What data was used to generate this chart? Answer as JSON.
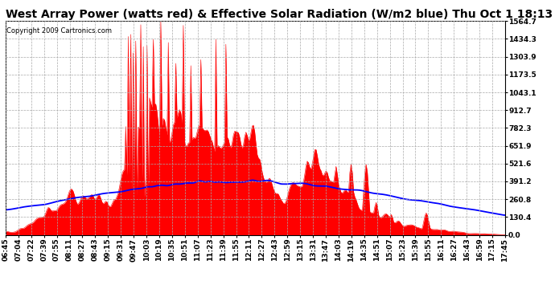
{
  "title": "West Array Power (watts red) & Effective Solar Radiation (W/m2 blue) Thu Oct 1 18:13",
  "copyright": "Copyright 2009 Cartronics.com",
  "background_color": "#ffffff",
  "plot_bg_color": "#ffffff",
  "grid_color": "#aaaaaa",
  "yticks": [
    0.0,
    130.4,
    260.8,
    391.2,
    521.6,
    651.9,
    782.3,
    912.7,
    1043.1,
    1173.5,
    1303.9,
    1434.3,
    1564.7
  ],
  "ylim": [
    0,
    1564.7
  ],
  "x_labels": [
    "06:45",
    "07:04",
    "07:22",
    "07:39",
    "07:55",
    "08:11",
    "08:27",
    "08:43",
    "09:15",
    "09:31",
    "09:47",
    "10:03",
    "10:19",
    "10:35",
    "10:51",
    "11:07",
    "11:23",
    "11:39",
    "11:55",
    "12:11",
    "12:27",
    "12:43",
    "12:59",
    "13:15",
    "13:31",
    "13:47",
    "14:03",
    "14:19",
    "14:35",
    "14:51",
    "15:07",
    "15:23",
    "15:39",
    "15:55",
    "16:11",
    "16:27",
    "16:43",
    "16:59",
    "17:15",
    "17:45"
  ],
  "red_color": "#ff0000",
  "blue_color": "#0000ff",
  "title_fontsize": 10,
  "tick_fontsize": 6.5,
  "copyright_fontsize": 6
}
